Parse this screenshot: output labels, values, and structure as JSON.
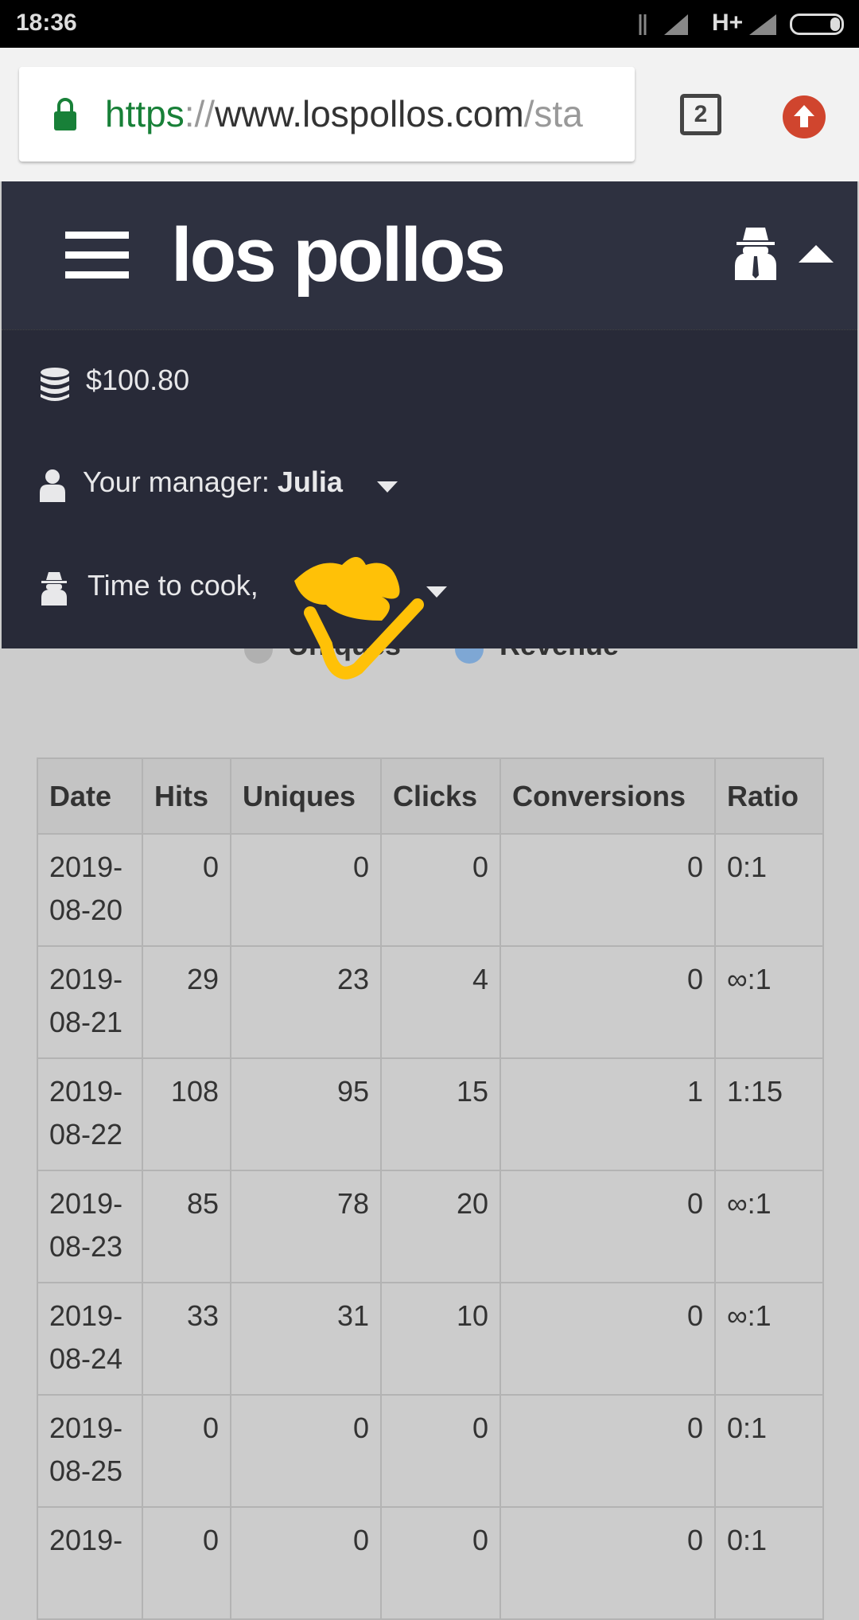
{
  "status_bar": {
    "time": "18:36",
    "network": "H+"
  },
  "browser": {
    "url_scheme": "https",
    "url_sep": "://",
    "url_host": "www.lospollos.com",
    "url_path": "/sta",
    "tab_count": "2"
  },
  "header": {
    "logo": "los pollos"
  },
  "menu": {
    "balance": "$100.80",
    "manager_label": "Your manager:",
    "manager_name": "Julia",
    "greeting": "Time to cook,"
  },
  "legend": {
    "items": [
      {
        "label": "Uniques",
        "color": "#b0b0b0"
      },
      {
        "label": "Revenue",
        "color": "#7ea7d4"
      }
    ]
  },
  "table": {
    "headers": [
      "Date",
      "Hits",
      "Uniques",
      "Clicks",
      "Conversions",
      "Ratio"
    ],
    "rows": [
      [
        "2019-08-20",
        "0",
        "0",
        "0",
        "0",
        "0:1"
      ],
      [
        "2019-08-21",
        "29",
        "23",
        "4",
        "0",
        "∞:1"
      ],
      [
        "2019-08-22",
        "108",
        "95",
        "15",
        "1",
        "1:15"
      ],
      [
        "2019-08-23",
        "85",
        "78",
        "20",
        "0",
        "∞:1"
      ],
      [
        "2019-08-24",
        "33",
        "31",
        "10",
        "0",
        "∞:1"
      ],
      [
        "2019-08-25",
        "0",
        "0",
        "0",
        "0",
        "0:1"
      ],
      [
        "2019-",
        "0",
        "0",
        "0",
        "0",
        "0:1"
      ]
    ]
  },
  "colors": {
    "header_bg": "#2e3140",
    "menu_bg": "#282a38",
    "page_bg": "#cccccc",
    "scribble": "#ffc107"
  }
}
